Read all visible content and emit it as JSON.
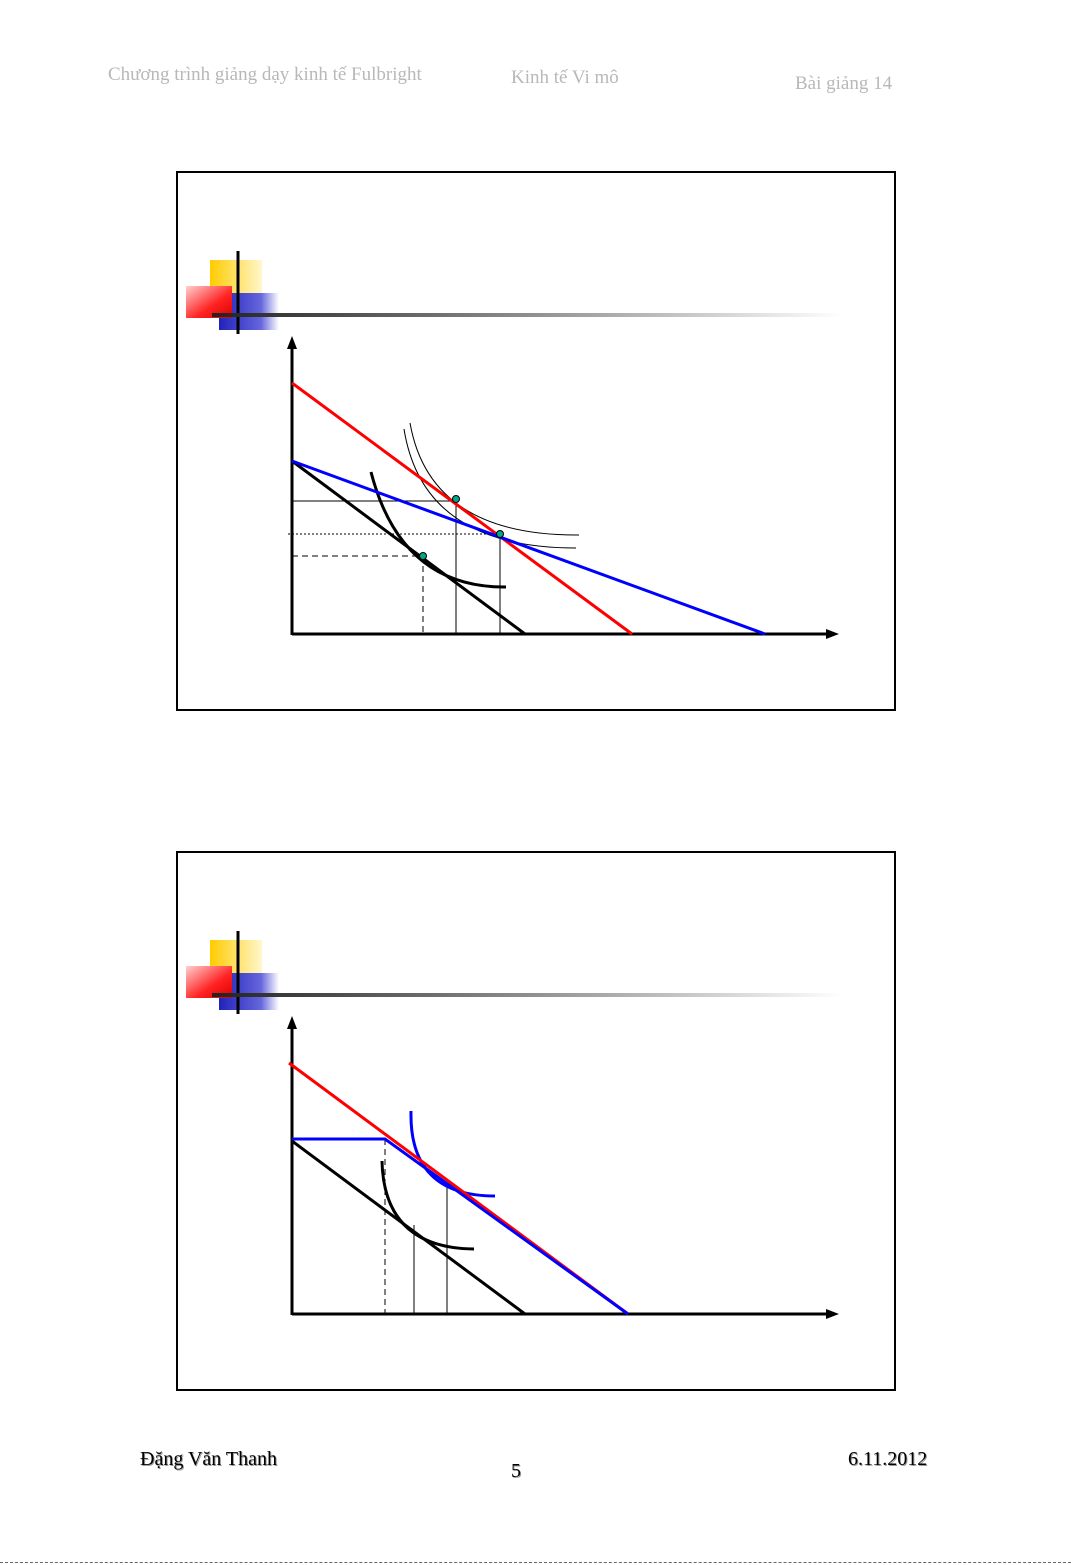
{
  "header": {
    "program": "Chương trình giảng dạy kinh tế Fulbright",
    "course": "Kinh tế Vi mô",
    "lecture": "Bài giảng 14"
  },
  "footer": {
    "author": "Đặng Văn Thanh",
    "page": "5",
    "date": "6.11.2012"
  },
  "colors": {
    "budget_original": "#000000",
    "budget_red": "#ff0000",
    "budget_blue": "#0000ff",
    "equilibrium_point": "#00aa88",
    "bullet_yellow": "#ffcc00",
    "bullet_red": "#ff3333",
    "bullet_blue": "#3333cc"
  },
  "slides": [
    {
      "diagram": "budget-constraint-indifference-curves",
      "lines": [
        "original-budget",
        "red-budget",
        "blue-budget"
      ],
      "indifference_curves": 3,
      "tangency_points": 3
    },
    {
      "diagram": "kinked-budget-constraint",
      "lines": [
        "original-budget",
        "red-budget",
        "blue-kinked-budget"
      ],
      "indifference_curves": 2
    }
  ]
}
